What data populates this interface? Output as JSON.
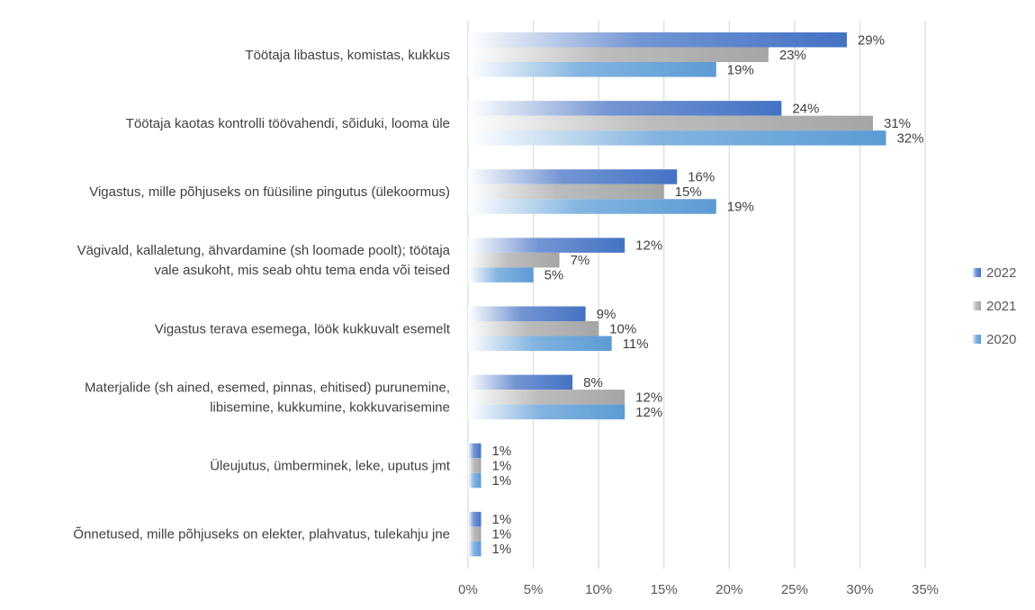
{
  "chart_data": {
    "type": "bar",
    "orientation": "horizontal",
    "categories": [
      [
        "Töötaja libastus, komistas, kukkus"
      ],
      [
        "Töötaja kaotas kontrolli töövahendi, sõiduki, looma üle"
      ],
      [
        "Vigastus, mille põhjuseks on füüsiline pingutus (ülekoormus)"
      ],
      [
        "Vägivald, kallaletung, ähvardamine (sh loomade poolt); töötaja",
        "vale asukoht, mis seab ohtu tema enda või teised"
      ],
      [
        "Vigastus terava esemega, löök kukkuvalt esemelt"
      ],
      [
        "Materjalide (sh ained, esemed, pinnas, ehitised) purunemine,",
        "libisemine, kukkumine, kokkuvarisemine"
      ],
      [
        "Üleujutus, ümberminek, leke, uputus jmt"
      ],
      [
        "Õnnetused, mille põhjuseks on elekter, plahvatus, tulekahju jne"
      ]
    ],
    "series": [
      {
        "name": "2022",
        "color": "#4472C4",
        "values": [
          29,
          24,
          16,
          12,
          9,
          8,
          1,
          1
        ],
        "labels": [
          "29%",
          "24%",
          "16%",
          "12%",
          "9%",
          "8%",
          "1%",
          "1%"
        ]
      },
      {
        "name": "2021",
        "color": "#A5A5A5",
        "values": [
          23,
          31,
          15,
          7,
          10,
          12,
          1,
          1
        ],
        "labels": [
          "23%",
          "31%",
          "15%",
          "7%",
          "10%",
          "12%",
          "1%",
          "1%"
        ]
      },
      {
        "name": "2020",
        "color": "#5B9BD5",
        "values": [
          19,
          32,
          19,
          5,
          11,
          12,
          1,
          1
        ],
        "labels": [
          "19%",
          "32%",
          "19%",
          "5%",
          "11%",
          "12%",
          "1%",
          "1%"
        ]
      }
    ],
    "xlim": [
      0,
      35
    ],
    "xticks": [
      0,
      5,
      10,
      15,
      20,
      25,
      30,
      35
    ],
    "xtick_labels": [
      "0%",
      "5%",
      "10%",
      "15%",
      "20%",
      "25%",
      "30%",
      "35%"
    ],
    "grid": true,
    "legend_position": "right",
    "legend_entries": [
      "2022",
      "2021",
      "2020"
    ]
  }
}
